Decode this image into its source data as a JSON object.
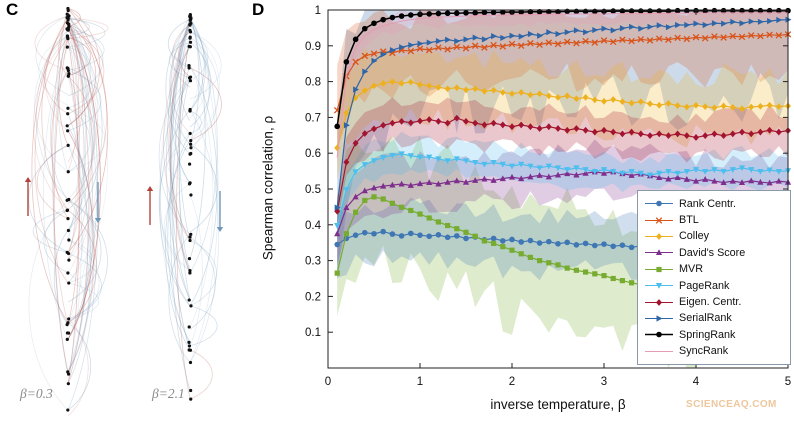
{
  "figure": {
    "panel_c_label": "C",
    "panel_d_label": "D",
    "watermark": "SCIENCEAQ.COM"
  },
  "panel_c": {
    "subplots": [
      {
        "label": "β=0.3"
      },
      {
        "label": "β=2.1"
      }
    ],
    "up_color": "#b3433a",
    "down_color": "#6f98b8",
    "dot_color": "#111111",
    "up_arrow_icon": "up-arrow",
    "down_arrow_icon": "down-arrow"
  },
  "chart_data": {
    "type": "line",
    "title": "",
    "xlabel": "inverse temperature, β",
    "ylabel": "Spearman correlation, ρ",
    "xlim": [
      0,
      5
    ],
    "ylim": [
      0,
      1
    ],
    "xticks": [
      0,
      1,
      2,
      3,
      4,
      5
    ],
    "yticks": [
      0.1,
      0.2,
      0.3,
      0.4,
      0.5,
      0.6,
      0.7,
      0.8,
      0.9,
      1
    ],
    "grid": false,
    "legend_position": "right-middle",
    "band_order": [
      "serialrank",
      "mvr",
      "btl",
      "colley",
      "rank_centr",
      "davids",
      "pagerank",
      "eigen",
      "syncrank"
    ],
    "x": [
      0.1,
      0.2,
      0.3,
      0.4,
      0.5,
      0.6,
      0.7,
      0.8,
      0.9,
      1.0,
      1.1,
      1.2,
      1.3,
      1.4,
      1.5,
      1.6,
      1.7,
      1.8,
      1.9,
      2.0,
      2.1,
      2.2,
      2.3,
      2.4,
      2.5,
      2.6,
      2.7,
      2.8,
      2.9,
      3.0,
      3.1,
      3.2,
      3.3,
      3.4,
      3.5,
      3.6,
      3.7,
      3.8,
      3.9,
      4.0,
      4.1,
      4.2,
      4.3,
      4.4,
      4.5,
      4.6,
      4.7,
      4.8,
      4.9,
      5.0
    ],
    "series": [
      {
        "key": "rank_centr",
        "name": "Rank Centr.",
        "color": "#3f76b4",
        "marker": "o",
        "band": 0.075,
        "values": [
          0.345,
          0.362,
          0.371,
          0.378,
          0.375,
          0.381,
          0.374,
          0.369,
          0.376,
          0.371,
          0.368,
          0.372,
          0.365,
          0.369,
          0.362,
          0.366,
          0.358,
          0.362,
          0.355,
          0.359,
          0.352,
          0.356,
          0.349,
          0.353,
          0.347,
          0.351,
          0.344,
          0.348,
          0.342,
          0.346,
          0.34,
          0.343,
          0.337,
          0.341,
          0.335,
          0.338,
          0.333,
          0.336,
          0.331,
          0.334,
          0.33,
          0.333,
          0.329,
          0.332,
          0.33,
          0.334,
          0.331,
          0.336,
          0.333,
          0.338
        ]
      },
      {
        "key": "btl",
        "name": "BTL",
        "color": "#d95319",
        "marker": "x",
        "band": 0.1,
        "values": [
          0.72,
          0.815,
          0.855,
          0.872,
          0.878,
          0.884,
          0.88,
          0.888,
          0.885,
          0.892,
          0.888,
          0.895,
          0.89,
          0.897,
          0.893,
          0.9,
          0.895,
          0.902,
          0.898,
          0.905,
          0.9,
          0.907,
          0.903,
          0.909,
          0.905,
          0.911,
          0.907,
          0.913,
          0.909,
          0.915,
          0.911,
          0.917,
          0.913,
          0.918,
          0.915,
          0.92,
          0.917,
          0.922,
          0.919,
          0.924,
          0.921,
          0.926,
          0.923,
          0.927,
          0.925,
          0.929,
          0.927,
          0.931,
          0.929,
          0.932
        ]
      },
      {
        "key": "colley",
        "name": "Colley",
        "color": "#edb120",
        "marker": "diamond",
        "band": 0.085,
        "values": [
          0.615,
          0.712,
          0.755,
          0.775,
          0.788,
          0.795,
          0.8,
          0.795,
          0.799,
          0.792,
          0.788,
          0.784,
          0.78,
          0.783,
          0.777,
          0.78,
          0.773,
          0.776,
          0.77,
          0.766,
          0.77,
          0.763,
          0.766,
          0.76,
          0.756,
          0.76,
          0.752,
          0.756,
          0.749,
          0.745,
          0.75,
          0.744,
          0.74,
          0.744,
          0.738,
          0.734,
          0.739,
          0.733,
          0.729,
          0.734,
          0.73,
          0.727,
          0.732,
          0.728,
          0.724,
          0.729,
          0.731,
          0.734,
          0.73,
          0.732
        ]
      },
      {
        "key": "davids",
        "name": "David's Score",
        "color": "#7e2f8e",
        "marker": "triangle-up",
        "band": 0.065,
        "values": [
          0.375,
          0.448,
          0.478,
          0.495,
          0.503,
          0.508,
          0.511,
          0.514,
          0.51,
          0.515,
          0.518,
          0.514,
          0.519,
          0.523,
          0.519,
          0.524,
          0.528,
          0.524,
          0.529,
          0.533,
          0.529,
          0.534,
          0.538,
          0.534,
          0.539,
          0.543,
          0.539,
          0.544,
          0.548,
          0.544,
          0.548,
          0.543,
          0.538,
          0.542,
          0.537,
          0.532,
          0.528,
          0.532,
          0.527,
          0.522,
          0.527,
          0.522,
          0.518,
          0.522,
          0.518,
          0.523,
          0.519,
          0.517,
          0.522,
          0.519
        ]
      },
      {
        "key": "mvr",
        "name": "MVR",
        "color": "#77ac30",
        "marker": "square",
        "band": 0.17,
        "values": [
          0.265,
          0.375,
          0.435,
          0.468,
          0.478,
          0.472,
          0.46,
          0.449,
          0.44,
          0.43,
          0.419,
          0.408,
          0.398,
          0.389,
          0.379,
          0.368,
          0.355,
          0.348,
          0.339,
          0.329,
          0.319,
          0.309,
          0.3,
          0.294,
          0.288,
          0.279,
          0.273,
          0.268,
          0.263,
          0.258,
          0.25,
          0.244,
          0.238,
          0.233,
          0.228,
          0.223,
          0.218,
          0.213,
          0.209,
          0.214,
          0.219,
          0.214,
          0.209,
          0.218,
          0.224,
          0.23,
          0.238,
          0.244,
          0.25,
          0.254
        ]
      },
      {
        "key": "pagerank",
        "name": "PageRank",
        "color": "#4dbeee",
        "marker": "triangle-down",
        "band": 0.045,
        "values": [
          0.398,
          0.498,
          0.548,
          0.568,
          0.579,
          0.588,
          0.594,
          0.598,
          0.593,
          0.589,
          0.589,
          0.584,
          0.579,
          0.584,
          0.579,
          0.574,
          0.569,
          0.574,
          0.569,
          0.564,
          0.569,
          0.564,
          0.559,
          0.564,
          0.559,
          0.554,
          0.559,
          0.554,
          0.549,
          0.554,
          0.549,
          0.544,
          0.549,
          0.544,
          0.539,
          0.544,
          0.549,
          0.544,
          0.549,
          0.554,
          0.549,
          0.554,
          0.549,
          0.554,
          0.559,
          0.554,
          0.549,
          0.553,
          0.549,
          0.551
        ]
      },
      {
        "key": "eigen",
        "name": "Eigen. Centr.",
        "color": "#a2142f",
        "marker": "diamond",
        "band": 0.055,
        "values": [
          0.438,
          0.575,
          0.628,
          0.655,
          0.668,
          0.678,
          0.684,
          0.689,
          0.685,
          0.69,
          0.694,
          0.689,
          0.684,
          0.698,
          0.689,
          0.684,
          0.679,
          0.684,
          0.679,
          0.674,
          0.679,
          0.674,
          0.669,
          0.674,
          0.669,
          0.664,
          0.669,
          0.664,
          0.659,
          0.664,
          0.659,
          0.654,
          0.659,
          0.654,
          0.649,
          0.654,
          0.649,
          0.654,
          0.649,
          0.644,
          0.649,
          0.654,
          0.649,
          0.654,
          0.659,
          0.654,
          0.659,
          0.664,
          0.659,
          0.663
        ]
      },
      {
        "key": "serialrank",
        "name": "SerialRank",
        "color": "#2e66a8",
        "marker": "triangle-right",
        "band": 0.21,
        "values": [
          0.448,
          0.678,
          0.778,
          0.828,
          0.858,
          0.876,
          0.888,
          0.896,
          0.902,
          0.906,
          0.909,
          0.913,
          0.917,
          0.913,
          0.918,
          0.923,
          0.918,
          0.927,
          0.922,
          0.928,
          0.926,
          0.933,
          0.928,
          0.938,
          0.933,
          0.938,
          0.943,
          0.938,
          0.944,
          0.948,
          0.943,
          0.949,
          0.953,
          0.948,
          0.953,
          0.957,
          0.952,
          0.958,
          0.958,
          0.962,
          0.958,
          0.963,
          0.962,
          0.967,
          0.963,
          0.968,
          0.967,
          0.969,
          0.972,
          0.973
        ]
      },
      {
        "key": "springrank",
        "name": "SpringRank",
        "color": "#000000",
        "marker": "o",
        "band": 0.008,
        "values": [
          0.675,
          0.855,
          0.918,
          0.948,
          0.963,
          0.973,
          0.979,
          0.983,
          0.986,
          0.988,
          0.989,
          0.99,
          0.991,
          0.991,
          0.992,
          0.992,
          0.993,
          0.993,
          0.994,
          0.994,
          0.994,
          0.995,
          0.995,
          0.995,
          0.995,
          0.996,
          0.996,
          0.996,
          0.996,
          0.996,
          0.997,
          0.997,
          0.997,
          0.997,
          0.997,
          0.997,
          0.997,
          0.998,
          0.998,
          0.998,
          0.998,
          0.998,
          0.998,
          0.998,
          0.998,
          0.998,
          0.998,
          0.998,
          0.998,
          0.998
        ]
      },
      {
        "key": "syncrank",
        "name": "SyncRank",
        "color": "#e49cb4",
        "marker": "none",
        "band": 0.025,
        "values": [
          0.588,
          0.818,
          0.895,
          0.928,
          0.945,
          0.956,
          0.963,
          0.969,
          0.973,
          0.976,
          0.978,
          0.98,
          0.981,
          0.982,
          0.983,
          0.984,
          0.985,
          0.985,
          0.986,
          0.986,
          0.987,
          0.987,
          0.987,
          0.988,
          0.988,
          0.988,
          0.989,
          0.989,
          0.989,
          0.989,
          0.99,
          0.99,
          0.99,
          0.99,
          0.99,
          0.991,
          0.991,
          0.991,
          0.991,
          0.991,
          0.991,
          0.992,
          0.992,
          0.992,
          0.992,
          0.992,
          0.992,
          0.992,
          0.992,
          0.992
        ]
      }
    ]
  }
}
